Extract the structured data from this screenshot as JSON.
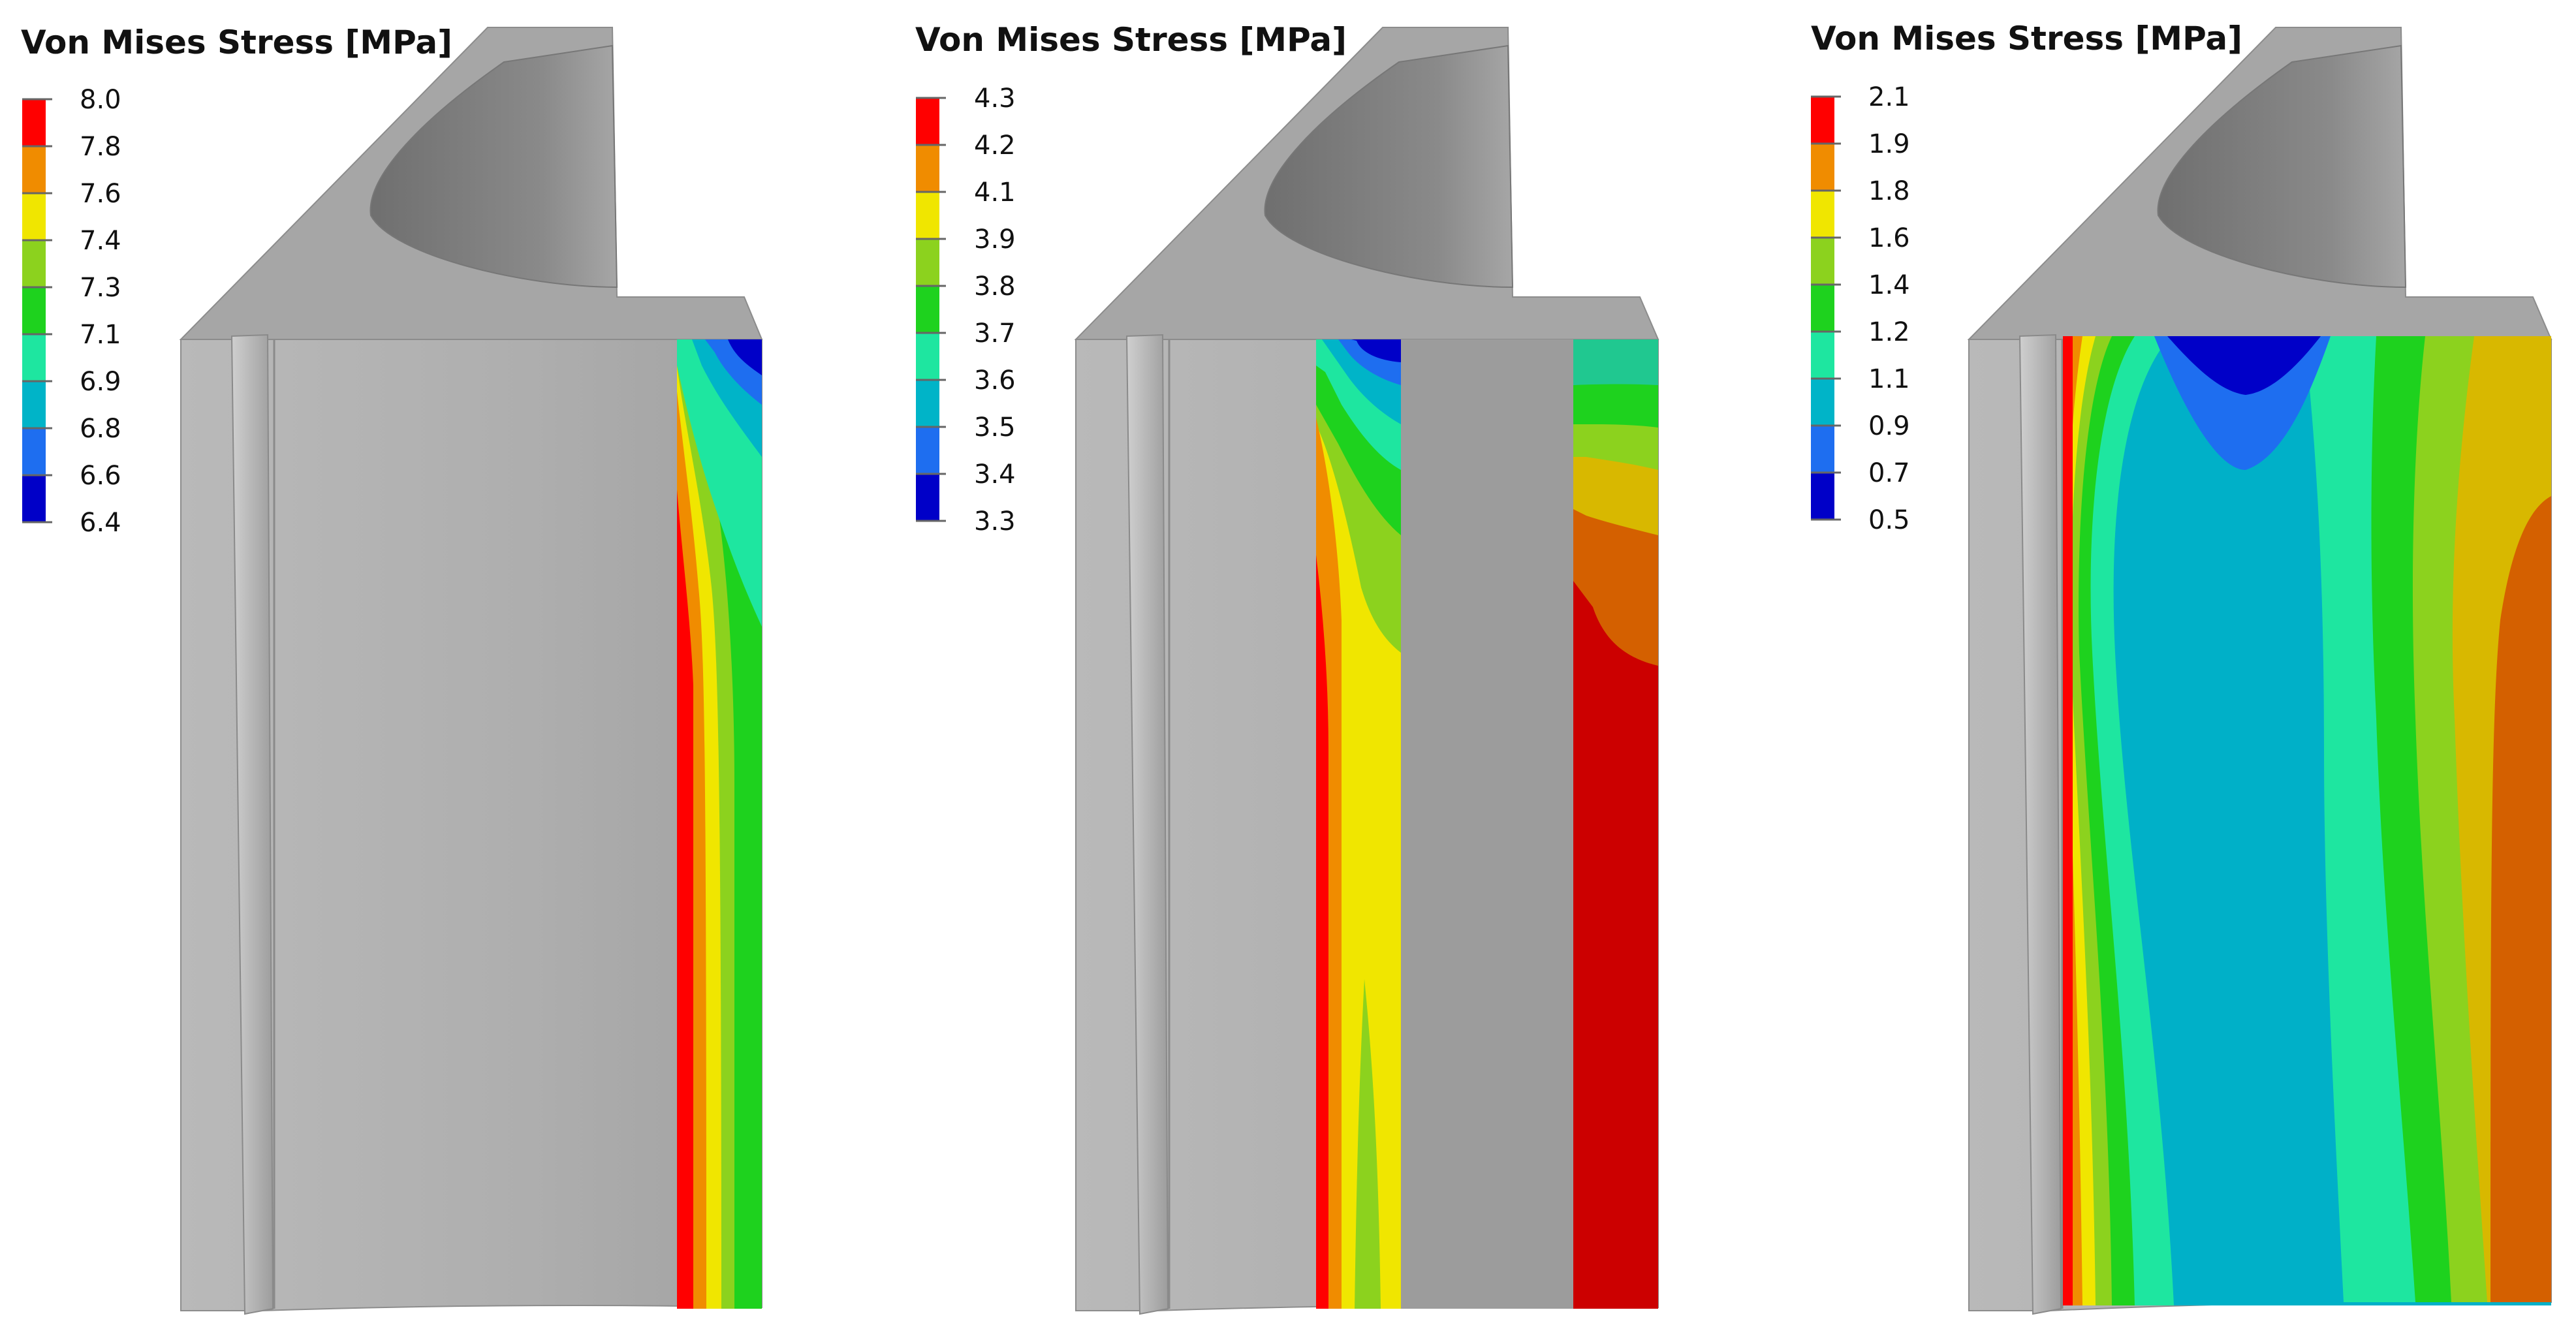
{
  "legend_colors": [
    "#0000c8",
    "#1e6ef0",
    "#00b4c8",
    "#1ee6a0",
    "#1ed21e",
    "#8cd21e",
    "#f0e600",
    "#f08c00",
    "#ff0000"
  ],
  "panels": [
    {
      "title": "Von Mises Stress [MPa]",
      "ticks": [
        "8.0",
        "7.8",
        "7.6",
        "7.4",
        "7.3",
        "7.1",
        "6.9",
        "6.8",
        "6.6",
        "6.4"
      ]
    },
    {
      "title": "Von Mises Stress [MPa]",
      "ticks": [
        "4.3",
        "4.2",
        "4.1",
        "3.9",
        "3.8",
        "3.7",
        "3.6",
        "3.5",
        "3.4",
        "3.3"
      ]
    },
    {
      "title": "Von Mises Stress [MPa]",
      "ticks": [
        "2.1",
        "1.9",
        "1.8",
        "1.6",
        "1.4",
        "1.2",
        "1.1",
        "0.9",
        "0.7",
        "0.5"
      ]
    }
  ]
}
